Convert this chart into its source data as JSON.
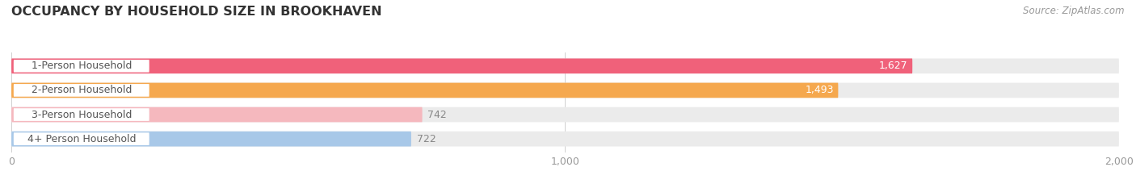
{
  "title": "OCCUPANCY BY HOUSEHOLD SIZE IN BROOKHAVEN",
  "source": "Source: ZipAtlas.com",
  "categories": [
    "1-Person Household",
    "2-Person Household",
    "3-Person Household",
    "4+ Person Household"
  ],
  "values": [
    1627,
    1493,
    742,
    722
  ],
  "bar_colors": [
    "#f0617a",
    "#f5a84e",
    "#f5b8be",
    "#a8c8e8"
  ],
  "bar_label_colors": [
    "#ffffff",
    "#ffffff",
    "#888888",
    "#888888"
  ],
  "xlim": [
    0,
    2000
  ],
  "xticks": [
    0,
    1000,
    2000
  ],
  "xtick_labels": [
    "0",
    "1,000",
    "2,000"
  ],
  "background_color": "#ffffff",
  "bar_bg_color": "#ebebeb",
  "title_fontsize": 11.5,
  "label_fontsize": 9,
  "value_fontsize": 9,
  "source_fontsize": 8.5
}
